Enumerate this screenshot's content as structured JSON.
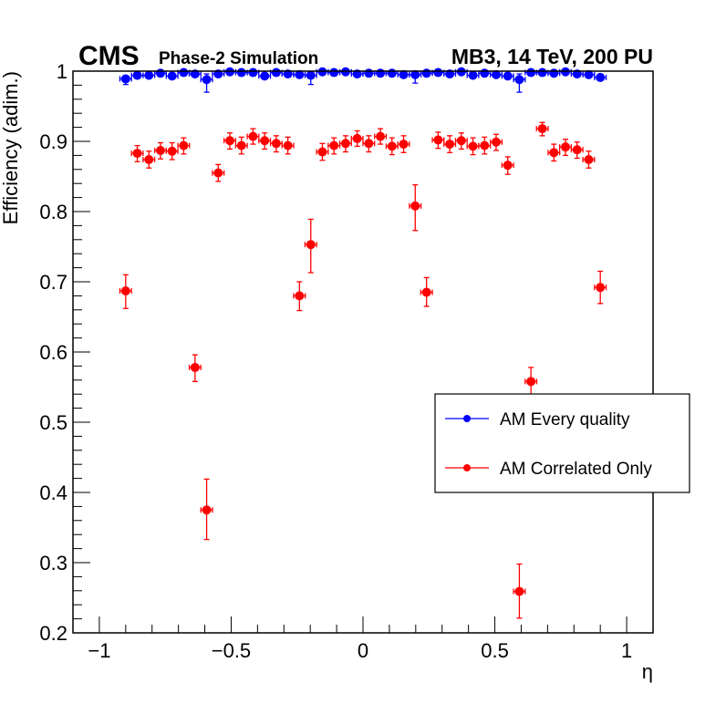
{
  "chart_data": {
    "type": "scatter",
    "title_left": "CMS",
    "title_left_sub": "Phase-2 Simulation",
    "title_right": "MB3, 14 TeV, 200 PU",
    "xlabel": "η",
    "ylabel": "Efficiency (adim.)",
    "xlim": [
      -1.1,
      1.1
    ],
    "ylim": [
      0.2,
      1.0
    ],
    "xticks": [
      -1,
      -0.5,
      0,
      0.5,
      1
    ],
    "xtick_labels": [
      "−1",
      "−0.5",
      "0",
      "0.5",
      "1"
    ],
    "yticks": [
      0.2,
      0.3,
      0.4,
      0.5,
      0.6,
      0.7,
      0.8,
      0.9,
      1.0
    ],
    "ytick_labels": [
      "0.2",
      "0.3",
      "0.4",
      "0.5",
      "0.6",
      "0.7",
      "0.8",
      "0.9",
      "1"
    ],
    "grid": false,
    "legend_position": "right-middle",
    "x": [
      -0.9,
      -0.856,
      -0.812,
      -0.768,
      -0.724,
      -0.68,
      -0.637,
      -0.593,
      -0.549,
      -0.505,
      -0.461,
      -0.417,
      -0.373,
      -0.329,
      -0.285,
      -0.241,
      -0.198,
      -0.154,
      -0.11,
      -0.066,
      -0.022,
      0.022,
      0.066,
      0.11,
      0.154,
      0.198,
      0.241,
      0.285,
      0.329,
      0.373,
      0.417,
      0.461,
      0.505,
      0.549,
      0.593,
      0.637,
      0.68,
      0.724,
      0.768,
      0.812,
      0.856,
      0.9
    ],
    "x_bin_half_width": 0.022,
    "series": [
      {
        "name": "AM Every quality",
        "color": "#0000ff",
        "values": [
          0.989,
          0.994,
          0.994,
          0.997,
          0.993,
          0.998,
          0.996,
          0.988,
          0.996,
          0.999,
          0.998,
          0.998,
          0.993,
          0.998,
          0.996,
          0.995,
          0.994,
          0.999,
          0.998,
          0.999,
          0.996,
          0.997,
          0.997,
          0.997,
          0.995,
          0.995,
          0.997,
          0.998,
          0.996,
          0.999,
          0.994,
          0.997,
          0.995,
          0.993,
          0.988,
          0.998,
          0.998,
          0.997,
          0.999,
          0.996,
          0.995,
          0.991
        ],
        "err_up": [
          0.003,
          0.002,
          0.002,
          0.002,
          0.003,
          0.002,
          0.002,
          0.008,
          0.002,
          0.001,
          0.002,
          0.002,
          0.003,
          0.002,
          0.002,
          0.003,
          0.003,
          0.001,
          0.002,
          0.001,
          0.002,
          0.002,
          0.002,
          0.002,
          0.003,
          0.004,
          0.002,
          0.002,
          0.002,
          0.001,
          0.003,
          0.002,
          0.003,
          0.003,
          0.008,
          0.002,
          0.002,
          0.002,
          0.001,
          0.002,
          0.003,
          0.003
        ],
        "err_down": [
          0.008,
          0.003,
          0.003,
          0.002,
          0.003,
          0.002,
          0.003,
          0.018,
          0.003,
          0.002,
          0.002,
          0.002,
          0.003,
          0.002,
          0.003,
          0.003,
          0.013,
          0.002,
          0.002,
          0.002,
          0.003,
          0.003,
          0.003,
          0.003,
          0.003,
          0.012,
          0.003,
          0.002,
          0.003,
          0.002,
          0.003,
          0.003,
          0.003,
          0.004,
          0.018,
          0.002,
          0.002,
          0.003,
          0.002,
          0.003,
          0.003,
          0.004
        ]
      },
      {
        "name": "AM Correlated Only",
        "color": "#ff0000",
        "values": [
          0.687,
          0.883,
          0.874,
          0.887,
          0.886,
          0.894,
          0.578,
          0.375,
          0.855,
          0.901,
          0.894,
          0.907,
          0.901,
          0.897,
          0.894,
          0.68,
          0.753,
          0.885,
          0.894,
          0.897,
          0.904,
          0.897,
          0.907,
          0.893,
          0.896,
          0.808,
          0.685,
          0.902,
          0.896,
          0.901,
          0.893,
          0.894,
          0.899,
          0.866,
          0.259,
          0.558,
          0.918,
          0.884,
          0.892,
          0.888,
          0.874,
          0.692
        ],
        "err_up": [
          0.023,
          0.011,
          0.012,
          0.011,
          0.012,
          0.011,
          0.018,
          0.044,
          0.012,
          0.011,
          0.012,
          0.011,
          0.011,
          0.011,
          0.012,
          0.02,
          0.036,
          0.012,
          0.011,
          0.011,
          0.011,
          0.011,
          0.011,
          0.012,
          0.012,
          0.03,
          0.021,
          0.011,
          0.012,
          0.011,
          0.012,
          0.012,
          0.011,
          0.012,
          0.039,
          0.02,
          0.009,
          0.012,
          0.011,
          0.011,
          0.012,
          0.023
        ],
        "err_down": [
          0.025,
          0.012,
          0.012,
          0.012,
          0.012,
          0.012,
          0.02,
          0.042,
          0.012,
          0.012,
          0.012,
          0.011,
          0.012,
          0.012,
          0.012,
          0.021,
          0.04,
          0.012,
          0.012,
          0.012,
          0.011,
          0.012,
          0.011,
          0.012,
          0.012,
          0.035,
          0.02,
          0.012,
          0.012,
          0.012,
          0.012,
          0.012,
          0.012,
          0.013,
          0.038,
          0.021,
          0.01,
          0.012,
          0.012,
          0.012,
          0.012,
          0.023
        ]
      }
    ]
  }
}
